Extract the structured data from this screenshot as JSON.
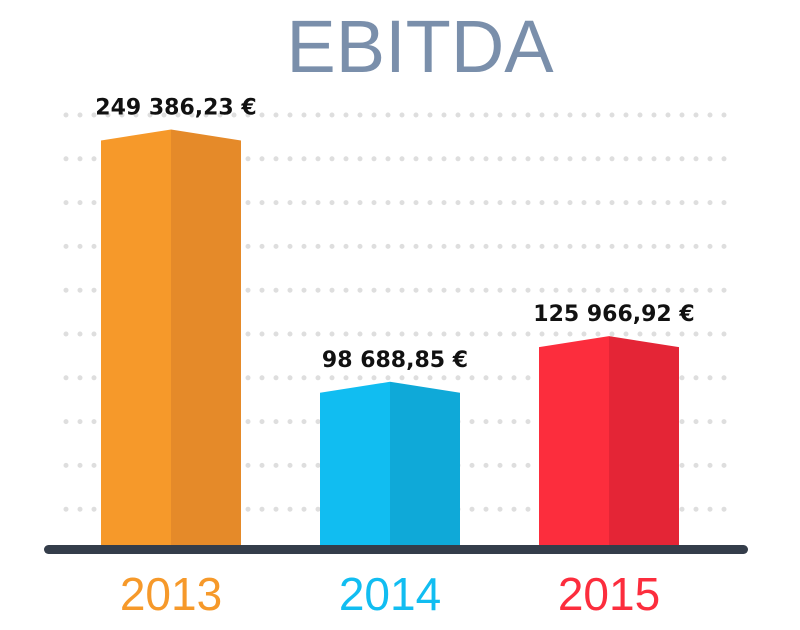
{
  "chart_data": {
    "type": "bar",
    "title": "EBITDA",
    "categories": [
      "2013",
      "2014",
      "2015"
    ],
    "values": [
      249386.23,
      98688.85,
      125966.92
    ],
    "value_labels": [
      "249 386,23 €",
      "98 688,85 €",
      "125 966,92 €"
    ],
    "xlabel": "",
    "ylabel": "",
    "ylim": [
      0,
      270000
    ],
    "grid": true,
    "colors": [
      {
        "front": "#f6992a",
        "side": "#e58a29"
      },
      {
        "front": "#11bdf1",
        "side": "#0fa9d8"
      },
      {
        "front": "#fc2d3d",
        "side": "#e42536"
      }
    ],
    "title_color": "#7a8fab",
    "grid_color": "#dedede",
    "baseline_color": "#343d4a"
  }
}
